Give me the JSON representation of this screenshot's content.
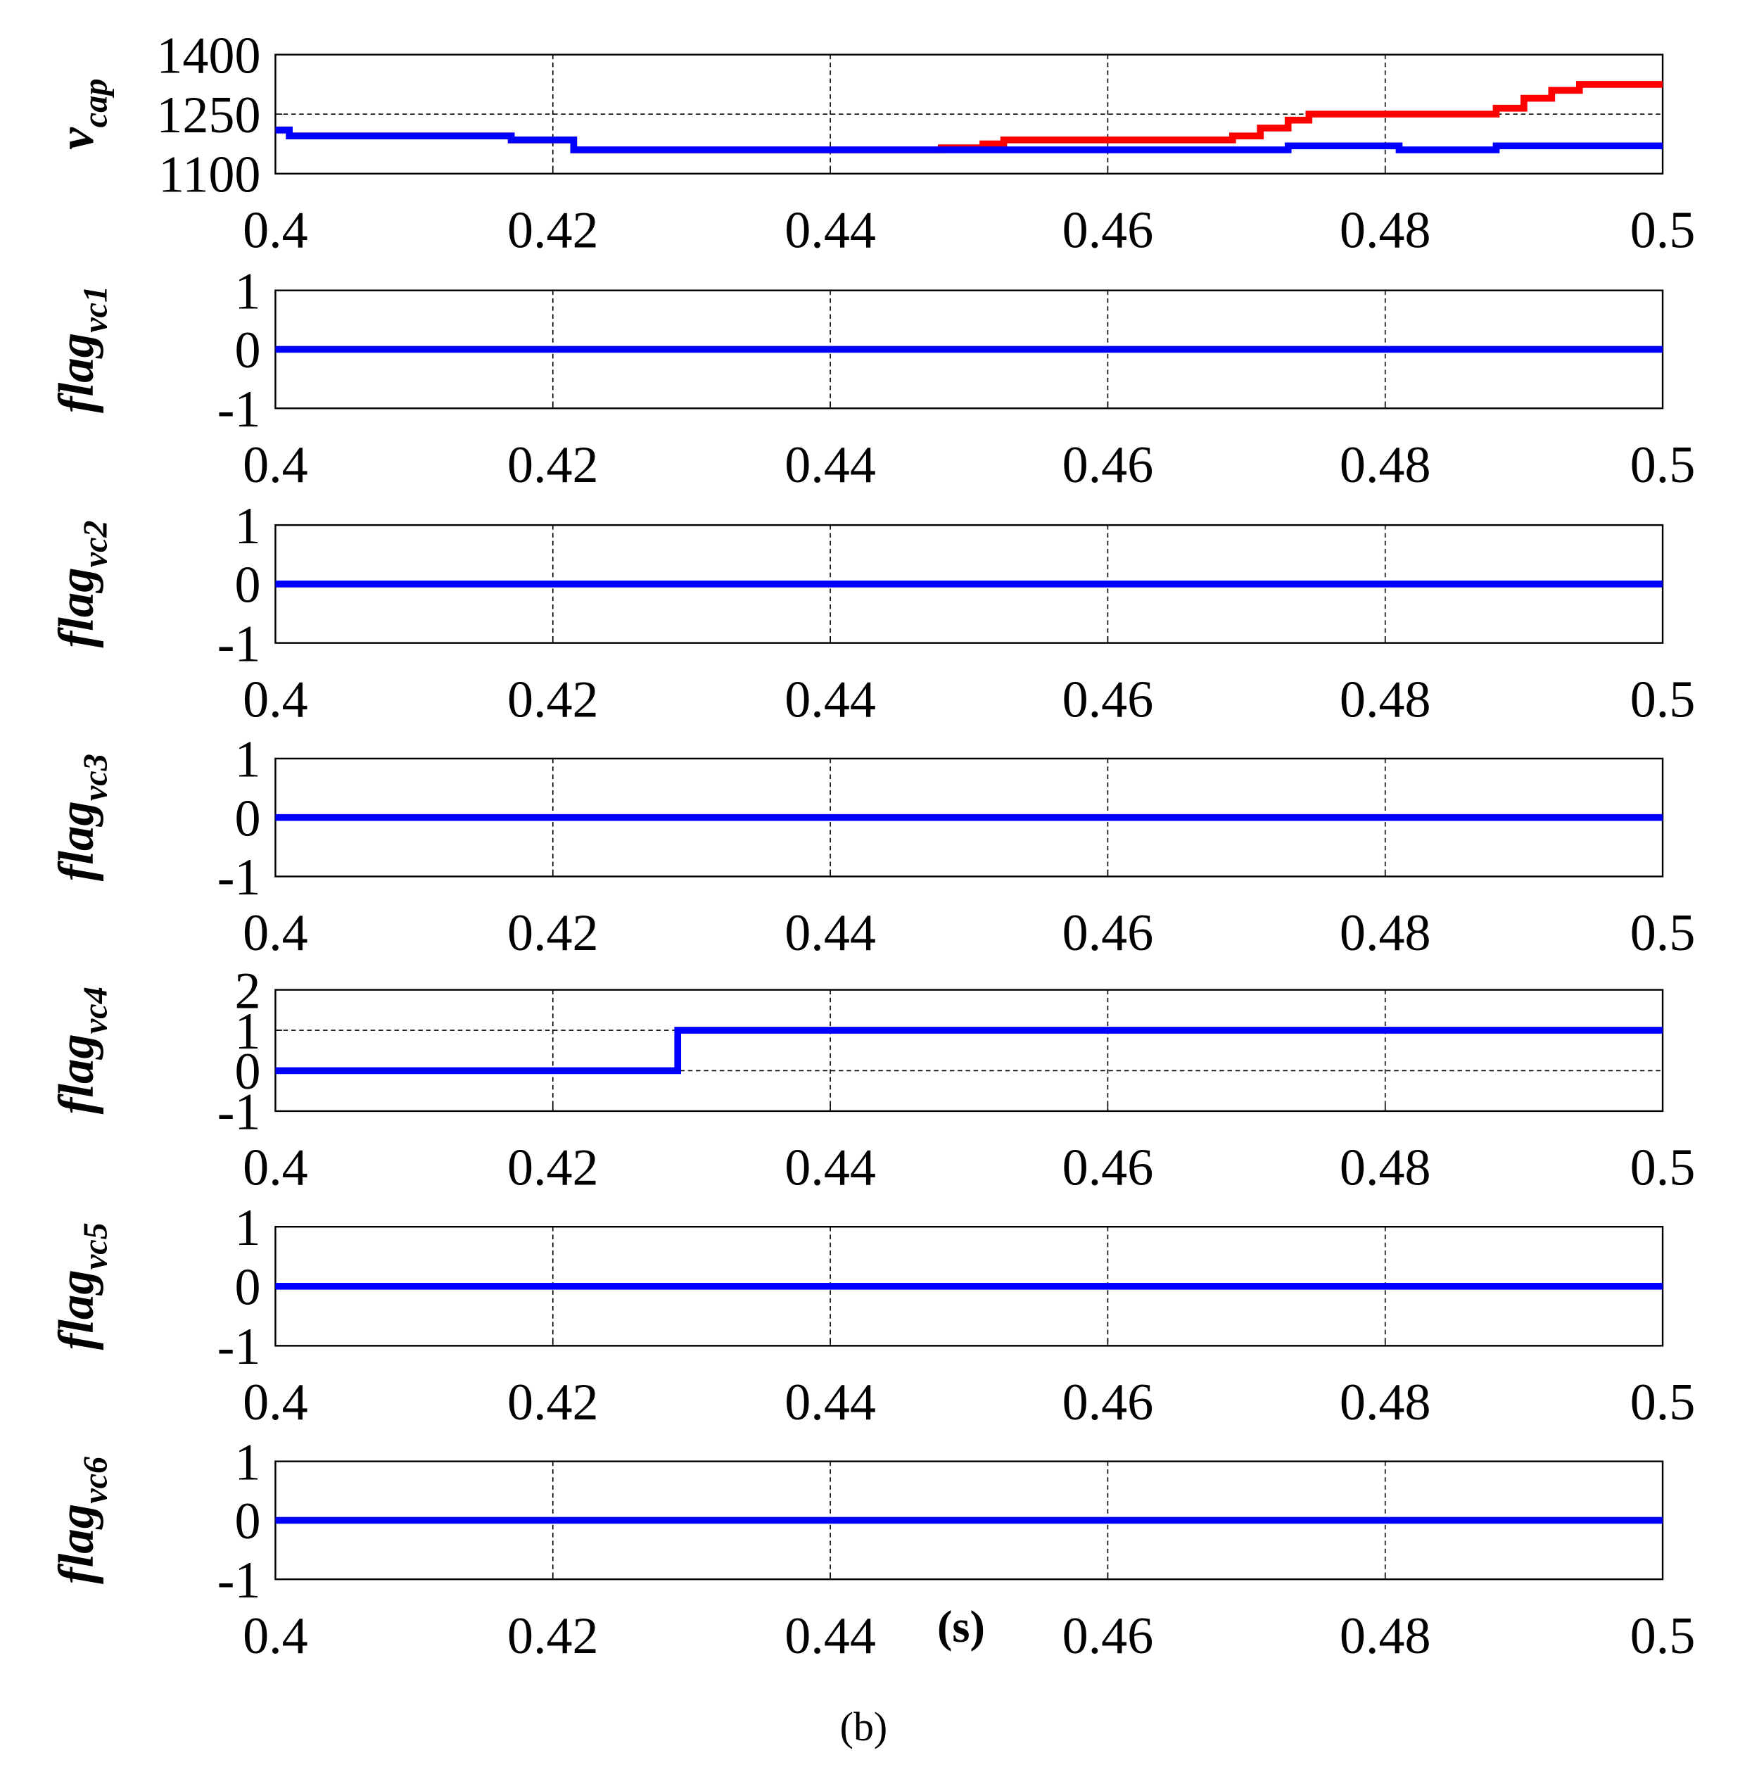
{
  "caption": "(b)",
  "chart_data": [
    {
      "type": "line",
      "ylabel": "v",
      "ylabel_sub": "cap",
      "xlim": [
        0.4,
        0.5
      ],
      "xticks": [
        0.4,
        0.42,
        0.44,
        0.46,
        0.48,
        0.5
      ],
      "ylim": [
        1100,
        1400
      ],
      "yticks": [
        1100,
        1250,
        1400
      ],
      "grid": true,
      "series": [
        {
          "color": "#ff0000",
          "x": [
            0.4,
            0.401,
            0.401,
            0.417,
            0.417,
            0.4215,
            0.4215,
            0.448,
            0.448,
            0.451,
            0.451,
            0.4525,
            0.4525,
            0.469,
            0.469,
            0.471,
            0.471,
            0.473,
            0.473,
            0.4745,
            0.4745,
            0.488,
            0.488,
            0.49,
            0.49,
            0.492,
            0.492,
            0.494,
            0.494,
            0.5
          ],
          "values": [
            1210,
            1210,
            1195,
            1195,
            1185,
            1185,
            1160,
            1160,
            1165,
            1165,
            1175,
            1175,
            1185,
            1185,
            1195,
            1195,
            1215,
            1215,
            1235,
            1235,
            1250,
            1250,
            1265,
            1265,
            1290,
            1290,
            1310,
            1310,
            1325,
            1325
          ]
        },
        {
          "color": "#0000ff",
          "x": [
            0.4,
            0.401,
            0.401,
            0.417,
            0.417,
            0.4215,
            0.4215,
            0.473,
            0.473,
            0.481,
            0.481,
            0.488,
            0.488,
            0.5
          ],
          "values": [
            1210,
            1210,
            1195,
            1195,
            1185,
            1185,
            1160,
            1160,
            1170,
            1170,
            1160,
            1160,
            1170,
            1170
          ]
        }
      ]
    },
    {
      "type": "line",
      "ylabel": "flag",
      "ylabel_sub": "vc1",
      "xlim": [
        0.4,
        0.5
      ],
      "xticks": [
        0.4,
        0.42,
        0.44,
        0.46,
        0.48,
        0.5
      ],
      "ylim": [
        -1,
        1
      ],
      "yticks": [
        -1,
        0,
        1
      ],
      "grid": true,
      "series": [
        {
          "color": "#0000ff",
          "x": [
            0.4,
            0.5
          ],
          "values": [
            0,
            0
          ]
        }
      ]
    },
    {
      "type": "line",
      "ylabel": "flag",
      "ylabel_sub": "vc2",
      "xlim": [
        0.4,
        0.5
      ],
      "xticks": [
        0.4,
        0.42,
        0.44,
        0.46,
        0.48,
        0.5
      ],
      "ylim": [
        -1,
        1
      ],
      "yticks": [
        -1,
        0,
        1
      ],
      "grid": true,
      "series": [
        {
          "color": "#0000ff",
          "x": [
            0.4,
            0.5
          ],
          "values": [
            0,
            0
          ]
        }
      ]
    },
    {
      "type": "line",
      "ylabel": "flag",
      "ylabel_sub": "vc3",
      "xlim": [
        0.4,
        0.5
      ],
      "xticks": [
        0.4,
        0.42,
        0.44,
        0.46,
        0.48,
        0.5
      ],
      "ylim": [
        -1,
        1
      ],
      "yticks": [
        -1,
        0,
        1
      ],
      "grid": true,
      "series": [
        {
          "color": "#0000ff",
          "x": [
            0.4,
            0.5
          ],
          "values": [
            0,
            0
          ]
        }
      ]
    },
    {
      "type": "line",
      "ylabel": "flag",
      "ylabel_sub": "vc4",
      "xlim": [
        0.4,
        0.5
      ],
      "xticks": [
        0.4,
        0.42,
        0.44,
        0.46,
        0.48,
        0.5
      ],
      "ylim": [
        -1,
        2
      ],
      "yticks": [
        -1,
        0,
        1,
        2
      ],
      "grid": true,
      "series": [
        {
          "color": "#0000ff",
          "x": [
            0.4,
            0.429,
            0.429,
            0.5
          ],
          "values": [
            0,
            0,
            1,
            1
          ]
        }
      ]
    },
    {
      "type": "line",
      "ylabel": "flag",
      "ylabel_sub": "vc5",
      "xlim": [
        0.4,
        0.5
      ],
      "xticks": [
        0.4,
        0.42,
        0.44,
        0.46,
        0.48,
        0.5
      ],
      "ylim": [
        -1,
        1
      ],
      "yticks": [
        -1,
        0,
        1
      ],
      "grid": true,
      "series": [
        {
          "color": "#0000ff",
          "x": [
            0.4,
            0.5
          ],
          "values": [
            0,
            0
          ]
        }
      ]
    },
    {
      "type": "line",
      "ylabel": "flag",
      "ylabel_sub": "vc6",
      "xlabel": "(s)",
      "xlim": [
        0.4,
        0.5
      ],
      "xticks": [
        0.4,
        0.42,
        0.44,
        0.46,
        0.48,
        0.5
      ],
      "ylim": [
        -1,
        1
      ],
      "yticks": [
        -1,
        0,
        1
      ],
      "grid": true,
      "series": [
        {
          "color": "#0000ff",
          "x": [
            0.4,
            0.5
          ],
          "values": [
            0,
            0
          ]
        }
      ]
    }
  ]
}
